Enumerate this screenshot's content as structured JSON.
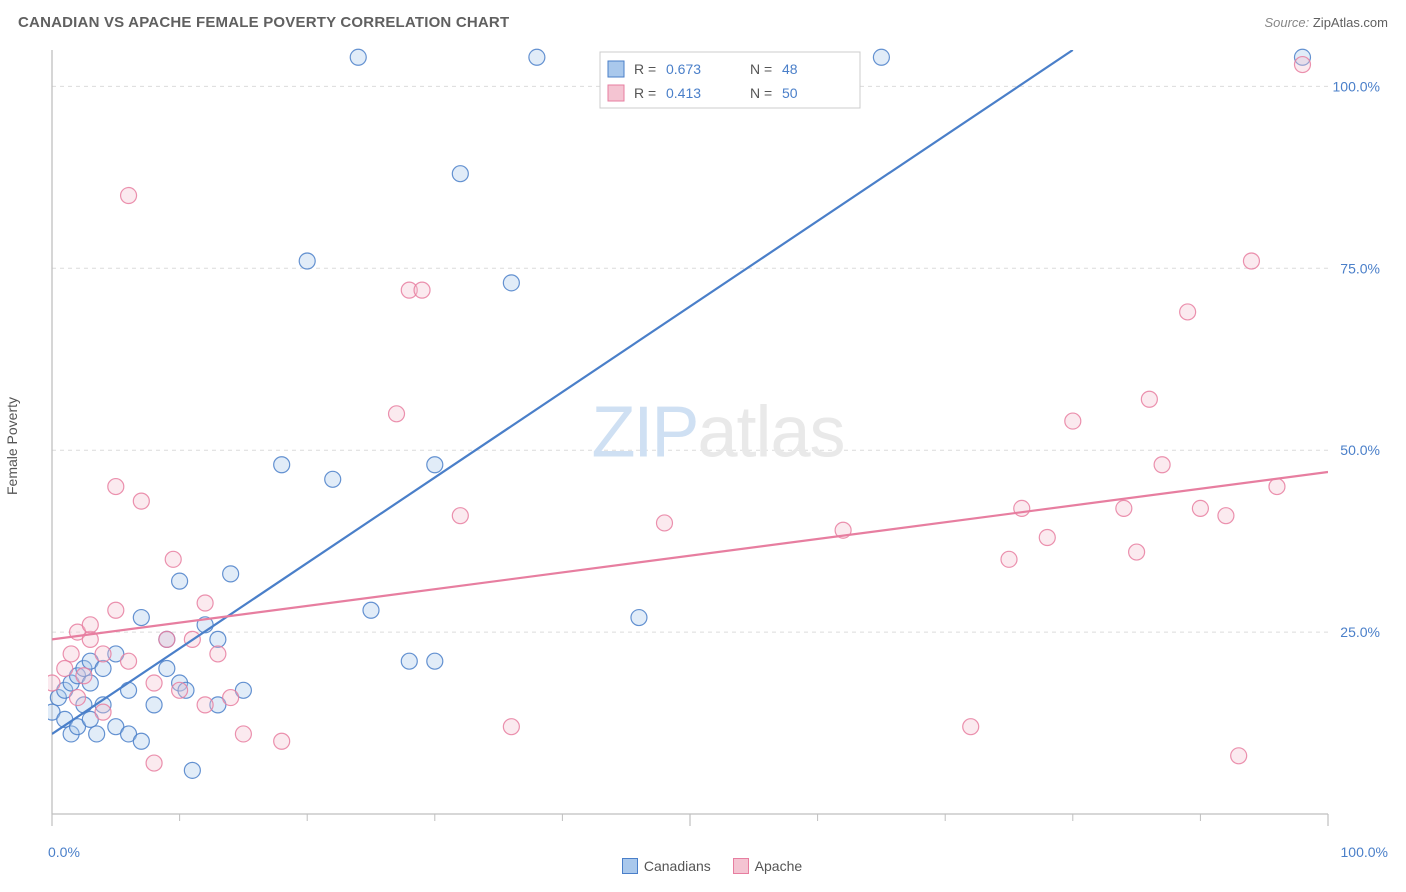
{
  "header": {
    "title": "CANADIAN VS APACHE FEMALE POVERTY CORRELATION CHART",
    "source_prefix": "Source: ",
    "source": "ZipAtlas.com"
  },
  "ylabel": "Female Poverty",
  "watermark": {
    "zip": "ZIP",
    "atlas": "atlas"
  },
  "chart": {
    "type": "scatter",
    "background_color": "#ffffff",
    "grid_color": "#dcdcdc",
    "axis_color": "#bfbfbf",
    "tick_color": "#bfbfbf",
    "xlim": [
      0,
      100
    ],
    "ylim": [
      0,
      105
    ],
    "xticks_major": [
      0,
      50,
      100
    ],
    "xticks_minor": [
      10,
      20,
      30,
      40,
      60,
      70,
      80,
      90
    ],
    "yticks": [
      25,
      50,
      75,
      100
    ],
    "ytick_labels": [
      "25.0%",
      "50.0%",
      "75.0%",
      "100.0%"
    ],
    "xaxis_end_labels": [
      "0.0%",
      "100.0%"
    ],
    "point_radius": 8,
    "point_stroke_width": 1.2,
    "point_fill_opacity": 0.35,
    "trend_line_width": 2.2
  },
  "legend_box": {
    "bg": "#ffffff",
    "border": "#cccccc",
    "rows": [
      {
        "swatch_fill": "#a9c8ec",
        "swatch_stroke": "#4a7fc9",
        "r_label": "R =",
        "r_val": "0.673",
        "n_label": "N =",
        "n_val": "48"
      },
      {
        "swatch_fill": "#f4c4d2",
        "swatch_stroke": "#e77ea0",
        "r_label": "R =",
        "r_val": "0.413",
        "n_label": "N =",
        "n_val": "50"
      }
    ]
  },
  "bottom_legend": [
    {
      "swatch_fill": "#a9c8ec",
      "swatch_stroke": "#4a7fc9",
      "label": "Canadians"
    },
    {
      "swatch_fill": "#f4c4d2",
      "swatch_stroke": "#e77ea0",
      "label": "Apache"
    }
  ],
  "series": [
    {
      "name": "Canadians",
      "color_stroke": "#4a7fc9",
      "color_fill": "#a9c8ec",
      "trend": {
        "x1": 0,
        "y1": 11,
        "x2": 80,
        "y2": 105
      },
      "points": [
        [
          0,
          14
        ],
        [
          0.5,
          16
        ],
        [
          1,
          13
        ],
        [
          1,
          17
        ],
        [
          1.5,
          11
        ],
        [
          1.5,
          18
        ],
        [
          2,
          12
        ],
        [
          2,
          19
        ],
        [
          2.5,
          20
        ],
        [
          2.5,
          15
        ],
        [
          3,
          13
        ],
        [
          3,
          21
        ],
        [
          3,
          18
        ],
        [
          3.5,
          11
        ],
        [
          4,
          20
        ],
        [
          4,
          15
        ],
        [
          5,
          12
        ],
        [
          5,
          22
        ],
        [
          6,
          11
        ],
        [
          6,
          17
        ],
        [
          7,
          10
        ],
        [
          7,
          27
        ],
        [
          8,
          15
        ],
        [
          9,
          24
        ],
        [
          9,
          20
        ],
        [
          10,
          18
        ],
        [
          10,
          32
        ],
        [
          10.5,
          17
        ],
        [
          11,
          6
        ],
        [
          12,
          26
        ],
        [
          13,
          15
        ],
        [
          13,
          24
        ],
        [
          14,
          33
        ],
        [
          15,
          17
        ],
        [
          18,
          48
        ],
        [
          20,
          76
        ],
        [
          22,
          46
        ],
        [
          24,
          104
        ],
        [
          25,
          28
        ],
        [
          28,
          21
        ],
        [
          30,
          48
        ],
        [
          30,
          21
        ],
        [
          32,
          88
        ],
        [
          36,
          73
        ],
        [
          38,
          104
        ],
        [
          46,
          27
        ],
        [
          65,
          104
        ],
        [
          98,
          104
        ]
      ]
    },
    {
      "name": "Apache",
      "color_stroke": "#e77ea0",
      "color_fill": "#f4c4d2",
      "trend": {
        "x1": 0,
        "y1": 24,
        "x2": 100,
        "y2": 47
      },
      "points": [
        [
          0,
          18
        ],
        [
          1,
          20
        ],
        [
          1.5,
          22
        ],
        [
          2,
          16
        ],
        [
          2,
          25
        ],
        [
          2.5,
          19
        ],
        [
          3,
          24
        ],
        [
          3,
          26
        ],
        [
          4,
          14
        ],
        [
          4,
          22
        ],
        [
          5,
          28
        ],
        [
          5,
          45
        ],
        [
          6,
          85
        ],
        [
          6,
          21
        ],
        [
          7,
          43
        ],
        [
          8,
          18
        ],
        [
          8,
          7
        ],
        [
          9,
          24
        ],
        [
          9.5,
          35
        ],
        [
          10,
          17
        ],
        [
          11,
          24
        ],
        [
          12,
          15
        ],
        [
          12,
          29
        ],
        [
          13,
          22
        ],
        [
          14,
          16
        ],
        [
          15,
          11
        ],
        [
          18,
          10
        ],
        [
          27,
          55
        ],
        [
          28,
          72
        ],
        [
          29,
          72
        ],
        [
          32,
          41
        ],
        [
          36,
          12
        ],
        [
          48,
          40
        ],
        [
          62,
          39
        ],
        [
          72,
          12
        ],
        [
          75,
          35
        ],
        [
          76,
          42
        ],
        [
          78,
          38
        ],
        [
          80,
          54
        ],
        [
          84,
          42
        ],
        [
          85,
          36
        ],
        [
          86,
          57
        ],
        [
          87,
          48
        ],
        [
          89,
          69
        ],
        [
          90,
          42
        ],
        [
          92,
          41
        ],
        [
          93,
          8
        ],
        [
          94,
          76
        ],
        [
          96,
          45
        ],
        [
          98,
          103
        ]
      ]
    }
  ]
}
